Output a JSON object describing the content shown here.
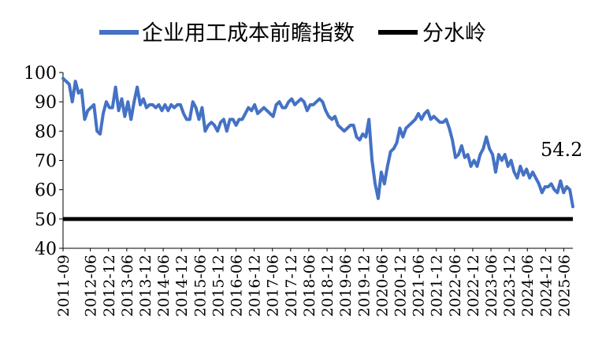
{
  "chart_data": {
    "type": "line",
    "title": "",
    "xlabel": "",
    "ylabel": "",
    "ylim": [
      40,
      100
    ],
    "yticks": [
      "40",
      "50",
      "60",
      "70",
      "80",
      "90",
      "100"
    ],
    "x_tick_labels": [
      "2011-09",
      "2012-06",
      "2012-12",
      "2013-06",
      "2013-12",
      "2014-06",
      "2014-12",
      "2015-06",
      "2015-12",
      "2016-06",
      "2016-12",
      "2017-06",
      "2017-12",
      "2018-06",
      "2018-12",
      "2019-06",
      "2019-12",
      "2020-06",
      "2020-12",
      "2021-06",
      "2021-12",
      "2022-06",
      "2022-12",
      "2023-06",
      "2023-12",
      "2024-06",
      "2024-12",
      "2025-06"
    ],
    "x_start": "2011-09",
    "x_end": "2025-09",
    "grid": false,
    "legend_position": "top",
    "annotation": "54.2",
    "series": [
      {
        "name": "企业用工成本前瞻指数",
        "color": "#4472C4",
        "values": [
          98,
          97,
          96,
          90,
          97,
          93,
          94,
          84,
          87,
          88,
          89,
          80,
          79,
          86,
          90,
          88,
          88,
          95,
          87,
          91,
          85,
          90,
          84,
          90,
          95,
          89,
          91,
          88,
          89,
          89,
          88,
          89,
          87,
          89,
          87,
          89,
          88,
          89,
          89,
          86,
          84,
          84,
          90,
          88,
          84,
          88,
          80,
          82,
          83,
          82,
          80,
          83,
          84,
          80,
          84,
          84,
          82,
          84,
          84,
          86,
          88,
          87,
          89,
          86,
          87,
          88,
          87,
          86,
          85,
          89,
          90,
          88,
          88,
          90,
          91,
          89,
          90,
          91,
          90,
          87,
          89,
          89,
          90,
          91,
          90,
          87,
          85,
          84,
          85,
          82,
          81,
          80,
          81,
          82,
          82,
          78,
          77,
          79,
          78,
          84,
          70,
          62,
          57,
          66,
          62,
          68,
          73,
          74,
          76,
          81,
          78,
          81,
          82,
          83,
          84,
          86,
          84,
          86,
          87,
          84,
          85,
          84,
          83,
          83,
          84,
          81,
          77,
          71,
          72,
          75,
          71,
          72,
          68,
          70,
          68,
          72,
          74,
          78,
          74,
          72,
          66,
          72,
          70,
          72,
          68,
          70,
          66,
          64,
          68,
          65,
          67,
          64,
          66,
          64,
          62,
          59,
          61,
          61,
          62,
          60,
          59,
          63,
          59,
          61,
          60,
          54.2
        ]
      },
      {
        "name": "分水岭",
        "color": "#000000",
        "values": [
          50,
          50
        ]
      }
    ]
  }
}
